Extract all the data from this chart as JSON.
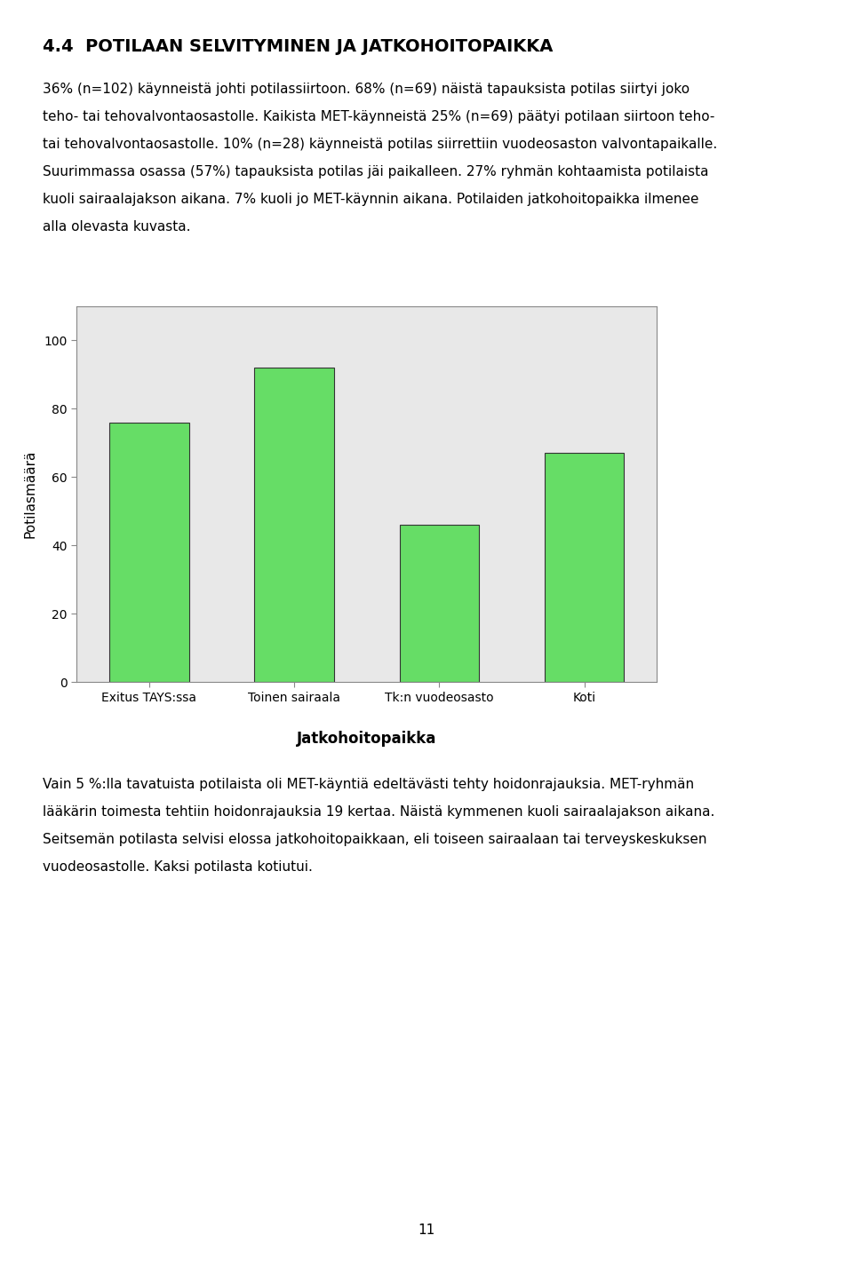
{
  "categories": [
    "Exitus TAYS:ssa",
    "Toinen sairaala",
    "Tk:n vuodeosasto",
    "Koti"
  ],
  "values": [
    76,
    92,
    46,
    67
  ],
  "bar_color": "#66DD66",
  "bar_edge_color": "#333333",
  "bar_edge_width": 0.8,
  "xlabel": "Jatkohoitopaikka",
  "ylabel": "Potilasmäärä",
  "ylim": [
    0,
    110
  ],
  "yticks": [
    0,
    20,
    40,
    60,
    80,
    100
  ],
  "plot_bg_color": "#E8E8E8",
  "page_bg_color": "#FFFFFF",
  "tick_fontsize": 10,
  "bar_width": 0.55,
  "figure_title": "4.4  POTILAAN SELVITYMINEN JA JATKOHOITOPAIKKA",
  "intro_lines": [
    "36% (n=102) käynneistä johti potilassiirtoon. 68% (n=69) näistä tapauksista potilas siirtyi joko",
    "teho- tai tehovalvontaosastolle. Kaikista MET-käynneistä 25% (n=69) päätyi potilaan siirtoon teho-",
    "tai tehovalvontaosastolle. 10% (n=28) käynneistä potilas siirrettiin vuodeosaston valvontapaikalle.",
    "Suurimmassa osassa (57%) tapauksista potilas jäi paikalleen. 27% ryhmän kohtaamista potilaista",
    "kuoli sairaalajakson aikana. 7% kuoli jo MET-käynnin aikana. Potilaiden jatkohoitopaikka ilmenee",
    "alla olevasta kuvasta."
  ],
  "footer_lines": [
    "Vain 5 %:lla tavatuista potilaista oli MET-käyntiä edeltävästi tehty hoidonrajauksia. MET-ryhmän",
    "lääkärin toimesta tehtiin hoidonrajauksia 19 kertaa. Näistä kymmenen kuoli sairaalajakson aikana.",
    "Seitsemän potilasta selvisi elossa jatkohoitopaikkaan, eli toiseen sairaalaan tai terveyskeskuksen",
    "vuodeosastolle. Kaksi potilasta kotiutui."
  ],
  "page_number": "11"
}
